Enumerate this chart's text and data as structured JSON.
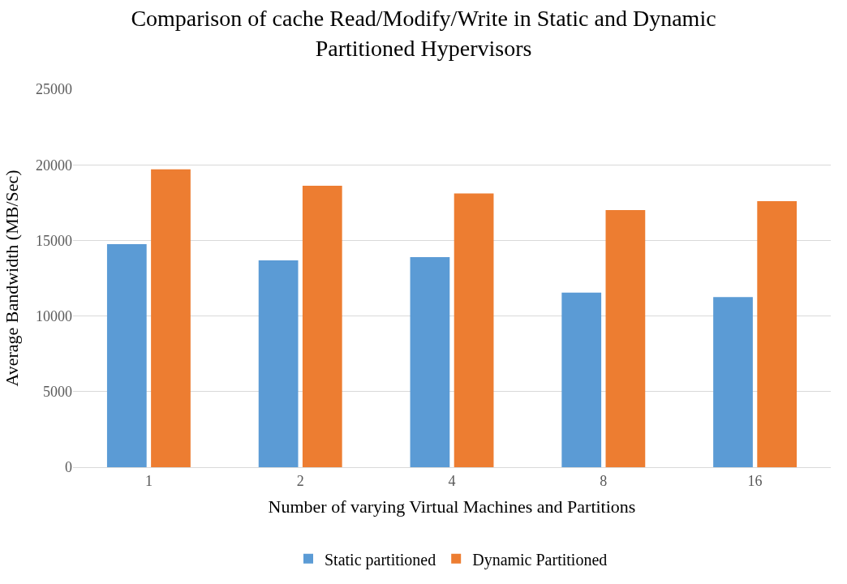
{
  "chart_data": {
    "type": "bar",
    "title": "Comparison of cache Read/Modify/Write in Static and Dynamic Partitioned Hypervisors",
    "xlabel": "Number of varying Virtual Machines and Partitions",
    "ylabel": "Average Bandwidth (MB/Sec)",
    "categories": [
      "1",
      "2",
      "4",
      "8",
      "16"
    ],
    "series": [
      {
        "name": "Static partitioned",
        "color": "#5b9bd5",
        "values": [
          14750,
          13680,
          13900,
          11550,
          11250
        ]
      },
      {
        "name": "Dynamic Partitioned",
        "color": "#ed7d31",
        "values": [
          19700,
          18620,
          18100,
          17000,
          17600
        ]
      }
    ],
    "ylim": [
      0,
      25000
    ],
    "yticks": [
      0,
      5000,
      10000,
      15000,
      20000,
      25000
    ],
    "grid": "y",
    "legend": "bottom"
  }
}
